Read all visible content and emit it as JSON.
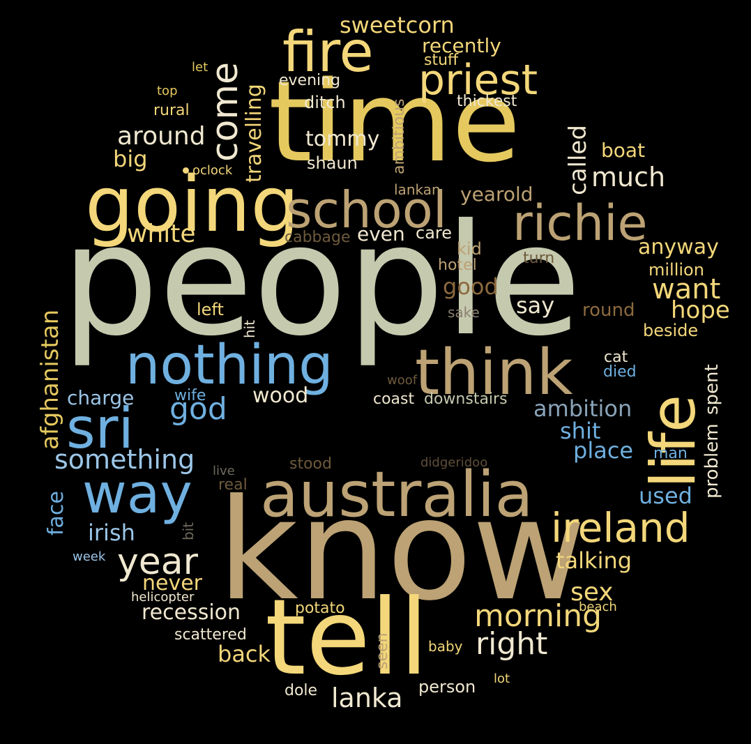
{
  "colors": {
    "background": "#000000",
    "gold": "#E5C95F",
    "yellow": "#F3D77A",
    "sage": "#C5C9AE",
    "tan": "#BCA274",
    "blue": "#6FB0E0",
    "lightblue": "#9CC6E8",
    "slate": "#8AA3B8",
    "brown": "#8C6A3F",
    "dim": "#6E5A3C",
    "white": "#F0E8D0",
    "grey": "#9A9A8C"
  },
  "words": {
    "time": "time",
    "people": "people",
    "know": "know",
    "tell": "tell",
    "going": "going",
    "fire": "fire",
    "school": "school",
    "richie": "richie",
    "priest": "priest",
    "nothing": "nothing",
    "think": "think",
    "life": "life",
    "australia": "australia",
    "sri": "sri",
    "way": "way",
    "ireland": "ireland",
    "year": "year",
    "something": "something",
    "come": "come",
    "morning": "morning",
    "right": "right",
    "lanka": "lanka",
    "sweetcorn": "sweetcorn",
    "recently": "recently",
    "stuff": "stuff",
    "let": "let",
    "top": "top",
    "evening": "evening",
    "rural": "rural",
    "ditch": "ditch",
    "ambitious": "ambitious",
    "thickest": "thickest",
    "travelling": "travelling",
    "around": "around",
    "tommy": "tommy",
    "big": "big",
    "shaun": "shaun",
    "oclock": "oclock",
    "called": "called",
    "boat": "boat",
    "much": "much",
    "lankan": "lankan",
    "yearold": "yearold",
    "white": "white",
    "even": "even",
    "cabbage": "cabbage",
    "care": "care",
    "anyway": "anyway",
    "kid": "kid",
    "turn": "turn",
    "hotel": "hotel",
    "million": "million",
    "good": "good",
    "want": "want",
    "afghanistan": "afghanistan",
    "left": "left",
    "hit": "hit",
    "say": "say",
    "hope": "hope",
    "sake": "sake",
    "round": "round",
    "beside": "beside",
    "cat": "cat",
    "died": "died",
    "spent": "spent",
    "charge": "charge",
    "wood": "wood",
    "god": "god",
    "wife": "wife",
    "woof": "woof",
    "coast": "coast",
    "downstairs": "downstairs",
    "ambition": "ambition",
    "shit": "shit",
    "place": "place",
    "problem": "problem",
    "man": "man",
    "live": "live",
    "stood": "stood",
    "didgeridoo": "didgeridoo",
    "face": "face",
    "real": "real",
    "used": "used",
    "irish": "irish",
    "bit": "bit",
    "week": "week",
    "talking": "talking",
    "never": "never",
    "sex": "sex",
    "helicopter": "helicopter",
    "recession": "recession",
    "potato": "potato",
    "beach": "beach",
    "scattered": "scattered",
    "back": "back",
    "seen": "seen",
    "baby": "baby",
    "dole": "dole",
    "person": "person",
    "lot": "lot"
  }
}
